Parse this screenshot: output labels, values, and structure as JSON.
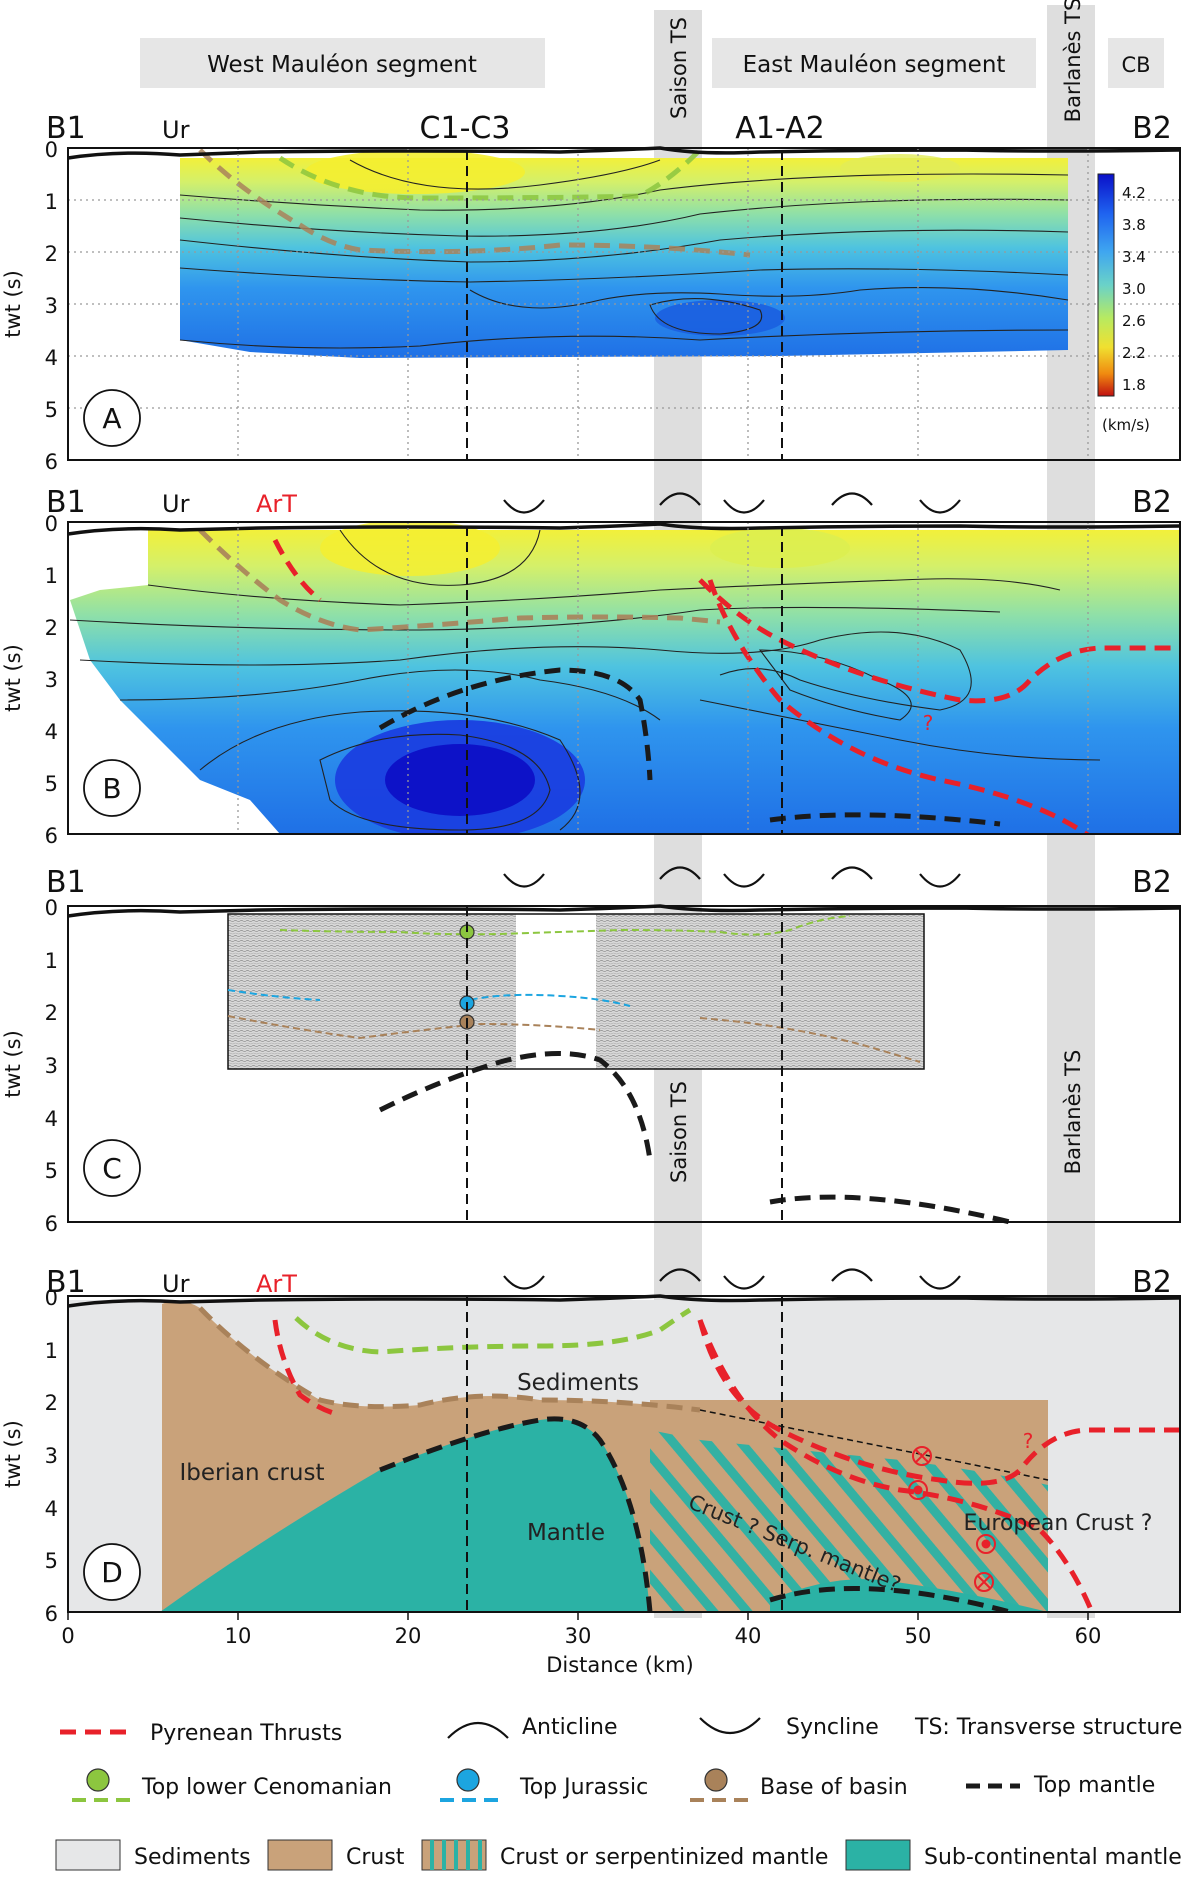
{
  "segments": {
    "west": "West Mauléon segment",
    "saison": "Saison TS",
    "east": "East Mauléon segment",
    "barlanes": "Barlanès TS",
    "cb": "CB"
  },
  "line_labels": {
    "start": "B1",
    "end": "B2",
    "ur": "Ur",
    "art": "ArT",
    "c1c3": "C1-C3",
    "a1a2": "A1-A2"
  },
  "axes": {
    "ylabel": "twt (s)",
    "xlabel": "Distance (km)",
    "yticks": [
      "0",
      "1",
      "2",
      "3",
      "4",
      "5",
      "6"
    ],
    "xticks": [
      "0",
      "10",
      "20",
      "30",
      "40",
      "50",
      "60"
    ]
  },
  "panels": [
    "A",
    "B",
    "C",
    "D"
  ],
  "colorbar": {
    "ticks": [
      "4.2",
      "3.8",
      "3.4",
      "3.0",
      "2.6",
      "2.2",
      "1.8"
    ],
    "unit": "(km/s)",
    "colors": [
      "#0a10c8",
      "#1f64f0",
      "#3fa6f0",
      "#6ad2c8",
      "#b8ea60",
      "#f0e030",
      "#f08a10",
      "#c01010"
    ]
  },
  "panelC_labels": {
    "saison": "Saison TS",
    "barlanes": "Barlanès TS"
  },
  "panelD_labels": {
    "sediments": "Sediments",
    "iberian": "Iberian crust",
    "mantle": "Mantle",
    "crust_serp": "Crust ? Serp. mantle?",
    "european": "European Crust ?",
    "q": "?"
  },
  "qmark_b": "?",
  "legend": {
    "thrusts": "Pyrenean Thrusts",
    "anticline": "Anticline",
    "syncline": "Syncline",
    "ts": "TS: Transverse structure",
    "cenomanian": "Top lower Cenomanian",
    "jurassic": "Top Jurassic",
    "basin": "Base of basin",
    "mantle": "Top mantle",
    "sediments": "Sediments",
    "crust": "Crust",
    "crust_serp": "Crust or serpentinized mantle",
    "subcont": "Sub-continental mantle"
  },
  "colors": {
    "thrust": "#e8212a",
    "cenomanian": "#8cc63f",
    "jurassic": "#1ca5e0",
    "basin": "#a9825a",
    "mantle_line": "#1a1a1a",
    "sediments": "#e6e7e8",
    "crust": "#c9a27a",
    "mantle_fill": "#2bb2a5",
    "ts_band": "#d8d8d8",
    "segment_bar": "#e6e6e6"
  }
}
